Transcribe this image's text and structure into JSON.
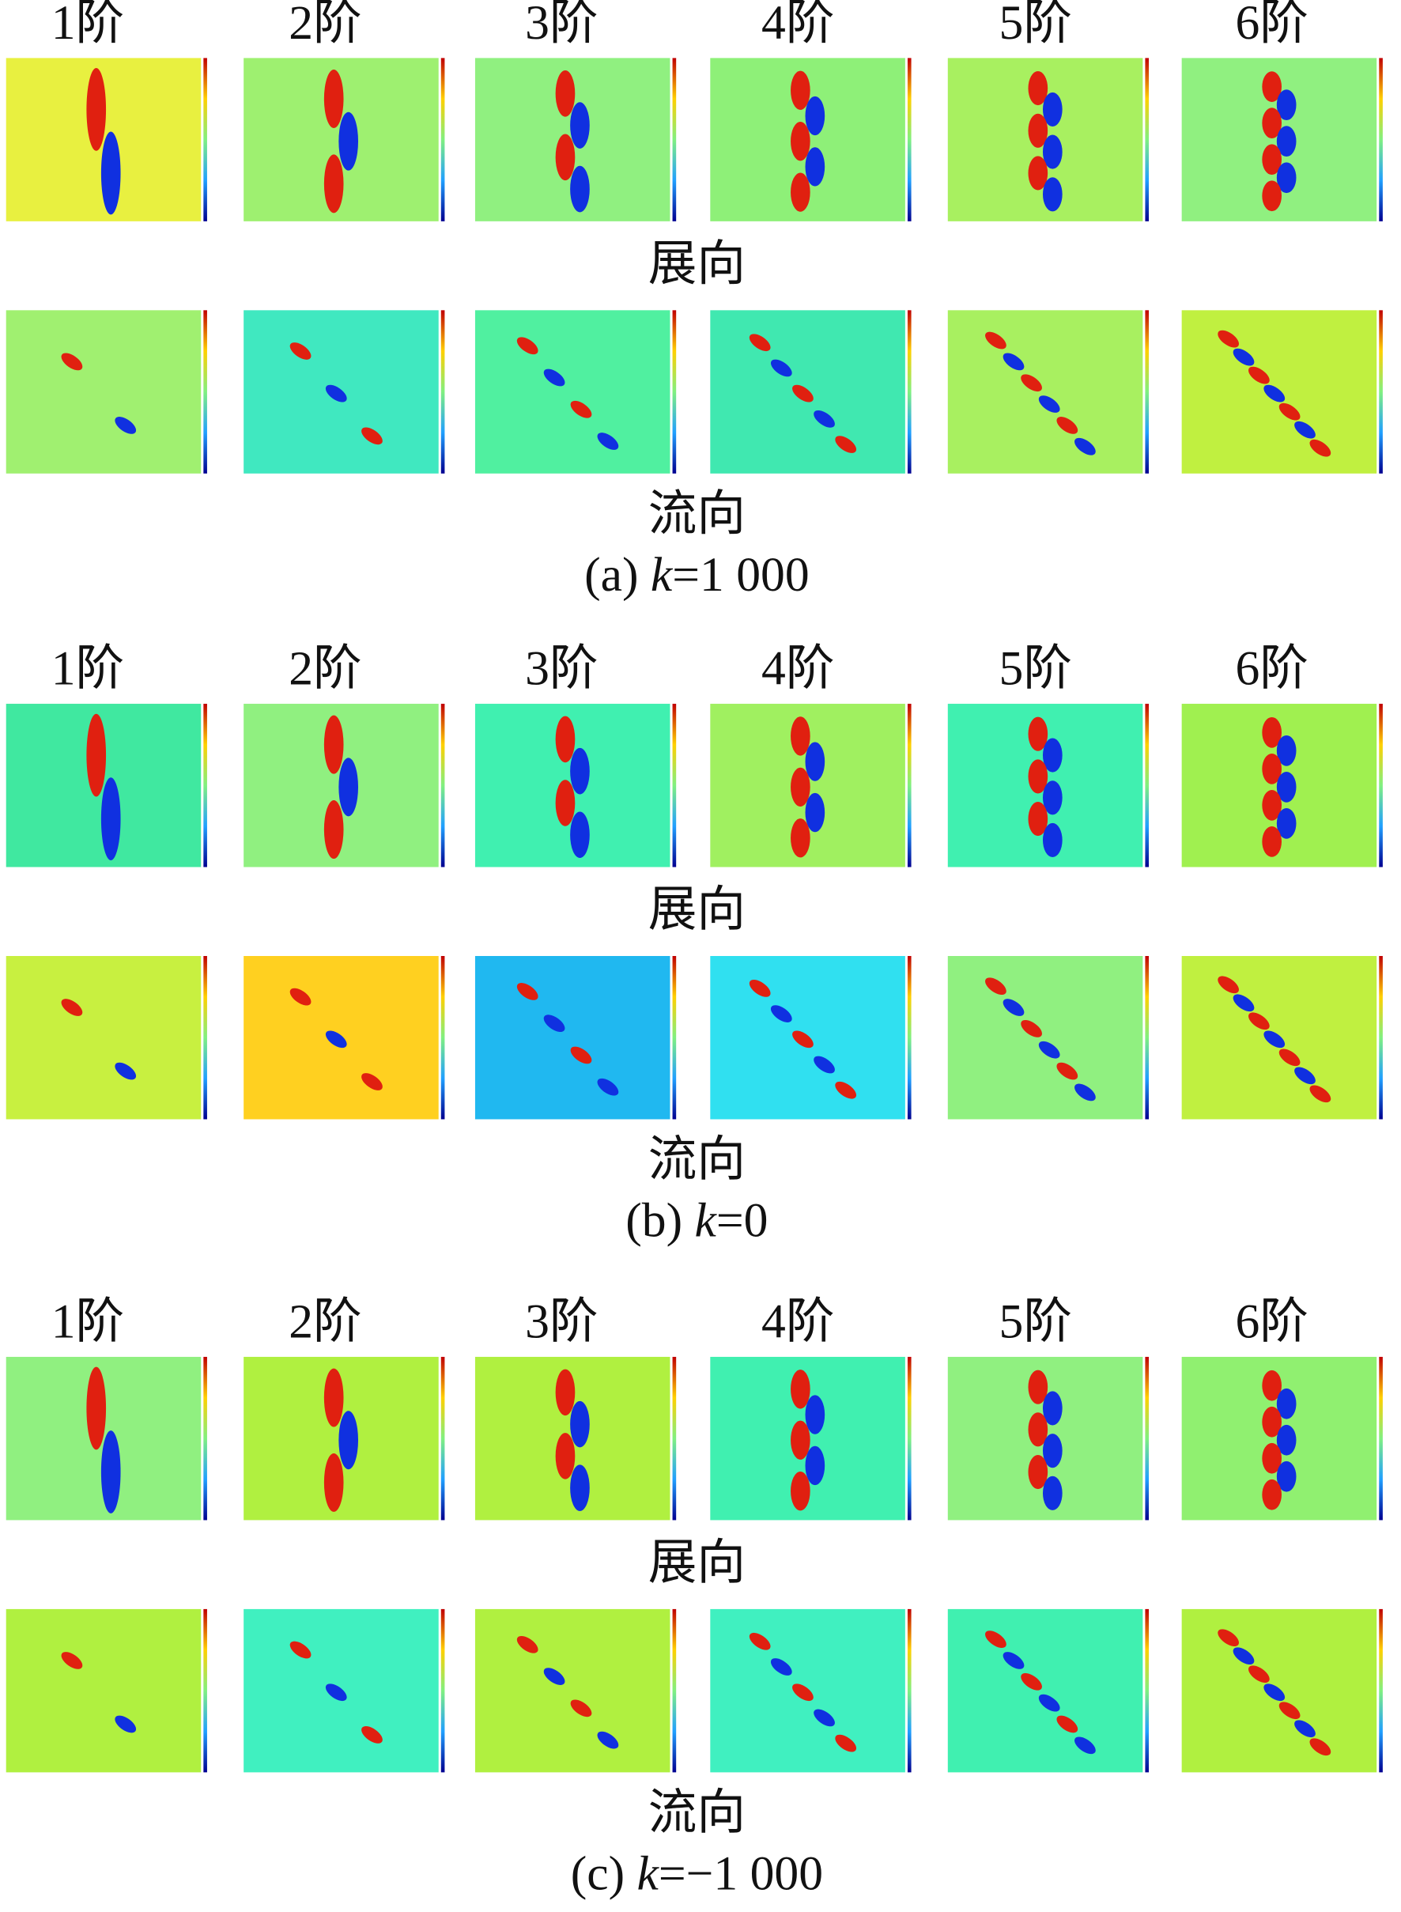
{
  "panels": [
    {
      "modes": [
        "1阶",
        "2阶",
        "3阶",
        "4阶",
        "5阶",
        "6阶"
      ],
      "rows": [
        "展向",
        "流向"
      ],
      "caption": {
        "prefix": "(a) ",
        "variable": "k",
        "suffix": "=1 000"
      }
    },
    {
      "modes": [
        "1阶",
        "2阶",
        "3阶",
        "4阶",
        "5阶",
        "6阶"
      ],
      "rows": [
        "展向",
        "流向"
      ],
      "caption": {
        "prefix": "(b) ",
        "variable": "k",
        "suffix": "=0"
      }
    },
    {
      "modes": [
        "1阶",
        "2阶",
        "3阶",
        "4阶",
        "5阶",
        "6阶"
      ],
      "rows": [
        "展向",
        "流向"
      ],
      "caption": {
        "prefix": "(c) ",
        "variable": "k",
        "suffix": "=−1 000"
      }
    }
  ]
}
